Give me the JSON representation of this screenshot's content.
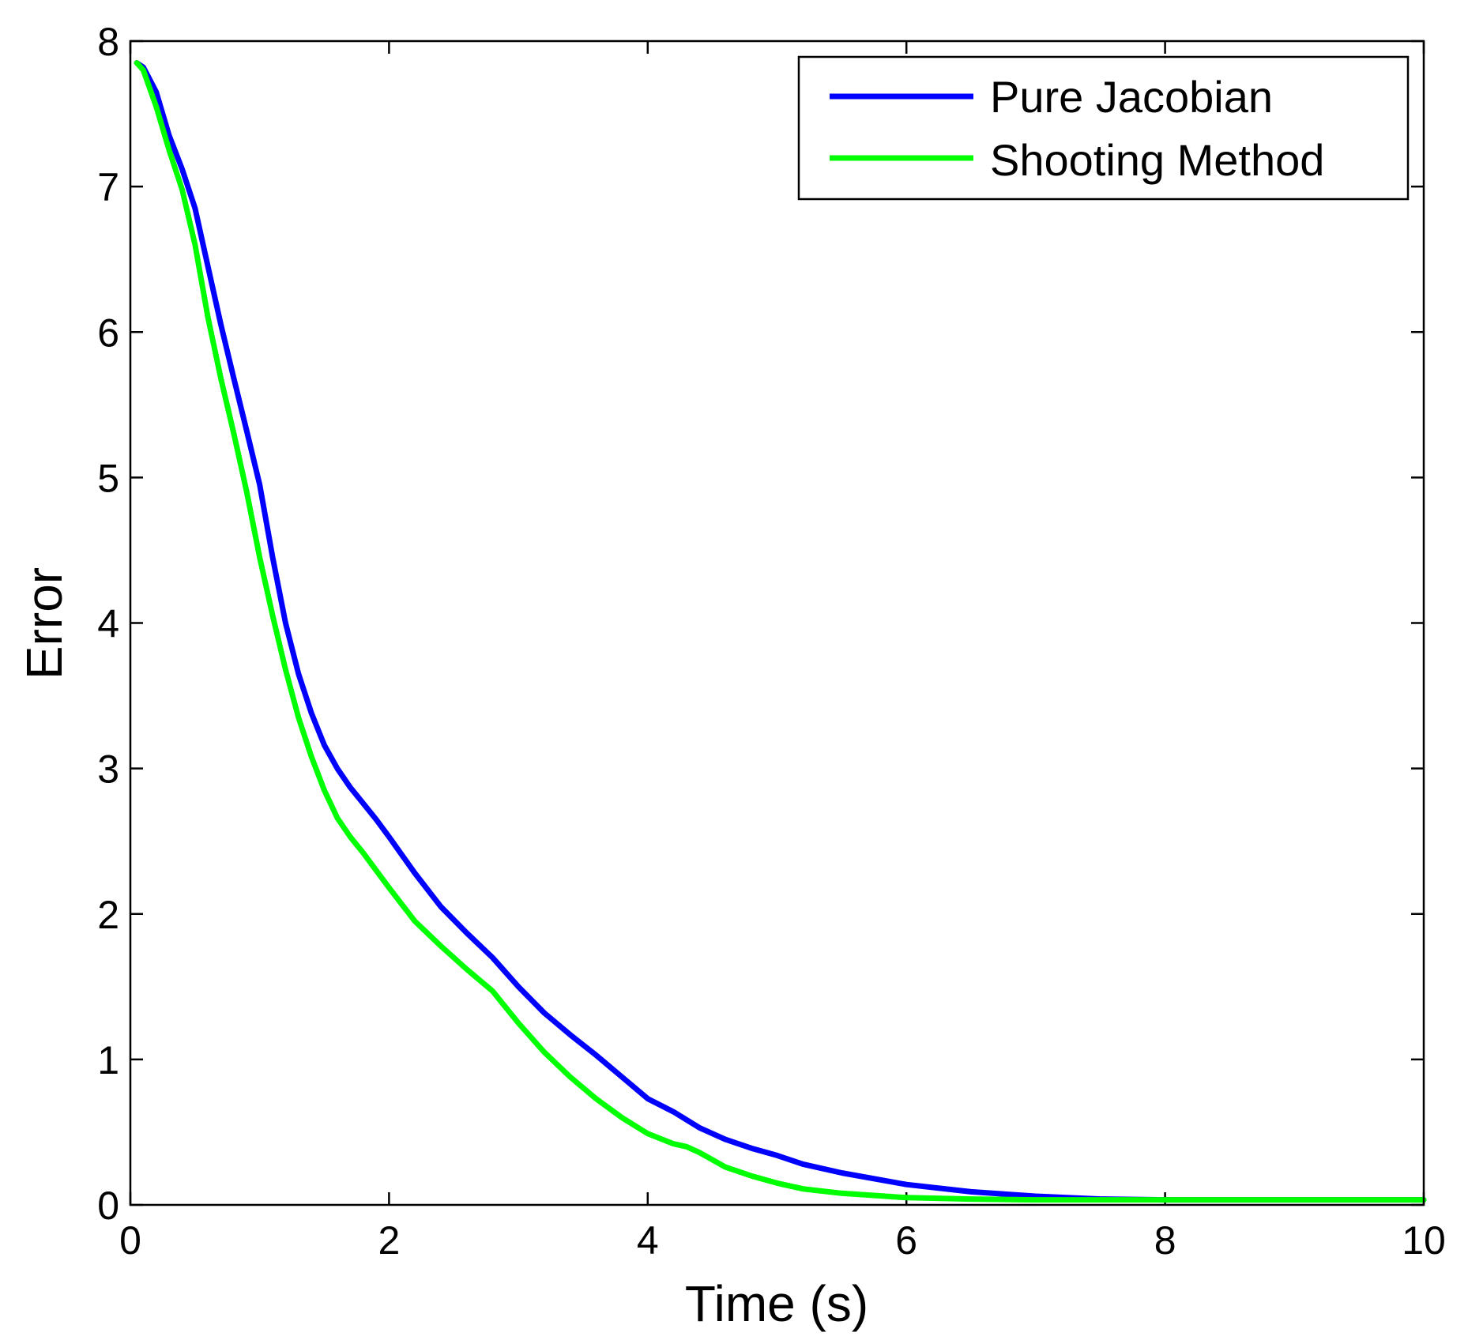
{
  "chart_data": {
    "type": "line",
    "title": "",
    "xlabel": "Time (s)",
    "ylabel": "Error",
    "xlim": [
      0,
      10
    ],
    "ylim": [
      0,
      8
    ],
    "xticks": [
      0,
      2,
      4,
      6,
      8,
      10
    ],
    "yticks": [
      0,
      1,
      2,
      3,
      4,
      5,
      6,
      7,
      8
    ],
    "grid": false,
    "legend_position": "top-right",
    "series": [
      {
        "name": "Pure Jacobian",
        "color": "#0000ff",
        "x": [
          0.05,
          0.1,
          0.2,
          0.3,
          0.4,
          0.5,
          0.6,
          0.7,
          0.8,
          0.9,
          1.0,
          1.1,
          1.2,
          1.3,
          1.4,
          1.5,
          1.6,
          1.7,
          1.8,
          1.9,
          2.0,
          2.2,
          2.4,
          2.6,
          2.8,
          3.0,
          3.2,
          3.4,
          3.6,
          3.8,
          4.0,
          4.2,
          4.4,
          4.6,
          4.8,
          5.0,
          5.2,
          5.5,
          6.0,
          6.5,
          7.0,
          7.5,
          8.0,
          9.0,
          10.0
        ],
        "y": [
          7.85,
          7.82,
          7.65,
          7.35,
          7.12,
          6.85,
          6.45,
          6.05,
          5.68,
          5.32,
          4.95,
          4.45,
          4.0,
          3.65,
          3.38,
          3.16,
          3.0,
          2.87,
          2.76,
          2.65,
          2.53,
          2.28,
          2.05,
          1.87,
          1.7,
          1.5,
          1.32,
          1.17,
          1.03,
          0.88,
          0.73,
          0.64,
          0.53,
          0.45,
          0.39,
          0.34,
          0.28,
          0.22,
          0.14,
          0.09,
          0.06,
          0.04,
          0.035,
          0.035,
          0.035
        ]
      },
      {
        "name": "Shooting Method",
        "color": "#00ff00",
        "x": [
          0.05,
          0.1,
          0.2,
          0.3,
          0.4,
          0.5,
          0.6,
          0.7,
          0.8,
          0.9,
          1.0,
          1.1,
          1.2,
          1.3,
          1.4,
          1.5,
          1.6,
          1.7,
          1.8,
          1.9,
          2.0,
          2.2,
          2.4,
          2.6,
          2.8,
          3.0,
          3.2,
          3.4,
          3.6,
          3.8,
          4.0,
          4.2,
          4.3,
          4.4,
          4.6,
          4.8,
          5.0,
          5.2,
          5.5,
          6.0,
          6.5,
          7.0,
          8.0,
          9.0,
          10.0
        ],
        "y": [
          7.85,
          7.8,
          7.55,
          7.25,
          6.98,
          6.6,
          6.1,
          5.68,
          5.3,
          4.9,
          4.45,
          4.05,
          3.68,
          3.35,
          3.08,
          2.85,
          2.66,
          2.53,
          2.42,
          2.3,
          2.18,
          1.95,
          1.78,
          1.62,
          1.47,
          1.25,
          1.05,
          0.88,
          0.73,
          0.6,
          0.49,
          0.42,
          0.4,
          0.36,
          0.26,
          0.2,
          0.15,
          0.11,
          0.08,
          0.05,
          0.04,
          0.035,
          0.035,
          0.035,
          0.035
        ]
      }
    ]
  }
}
